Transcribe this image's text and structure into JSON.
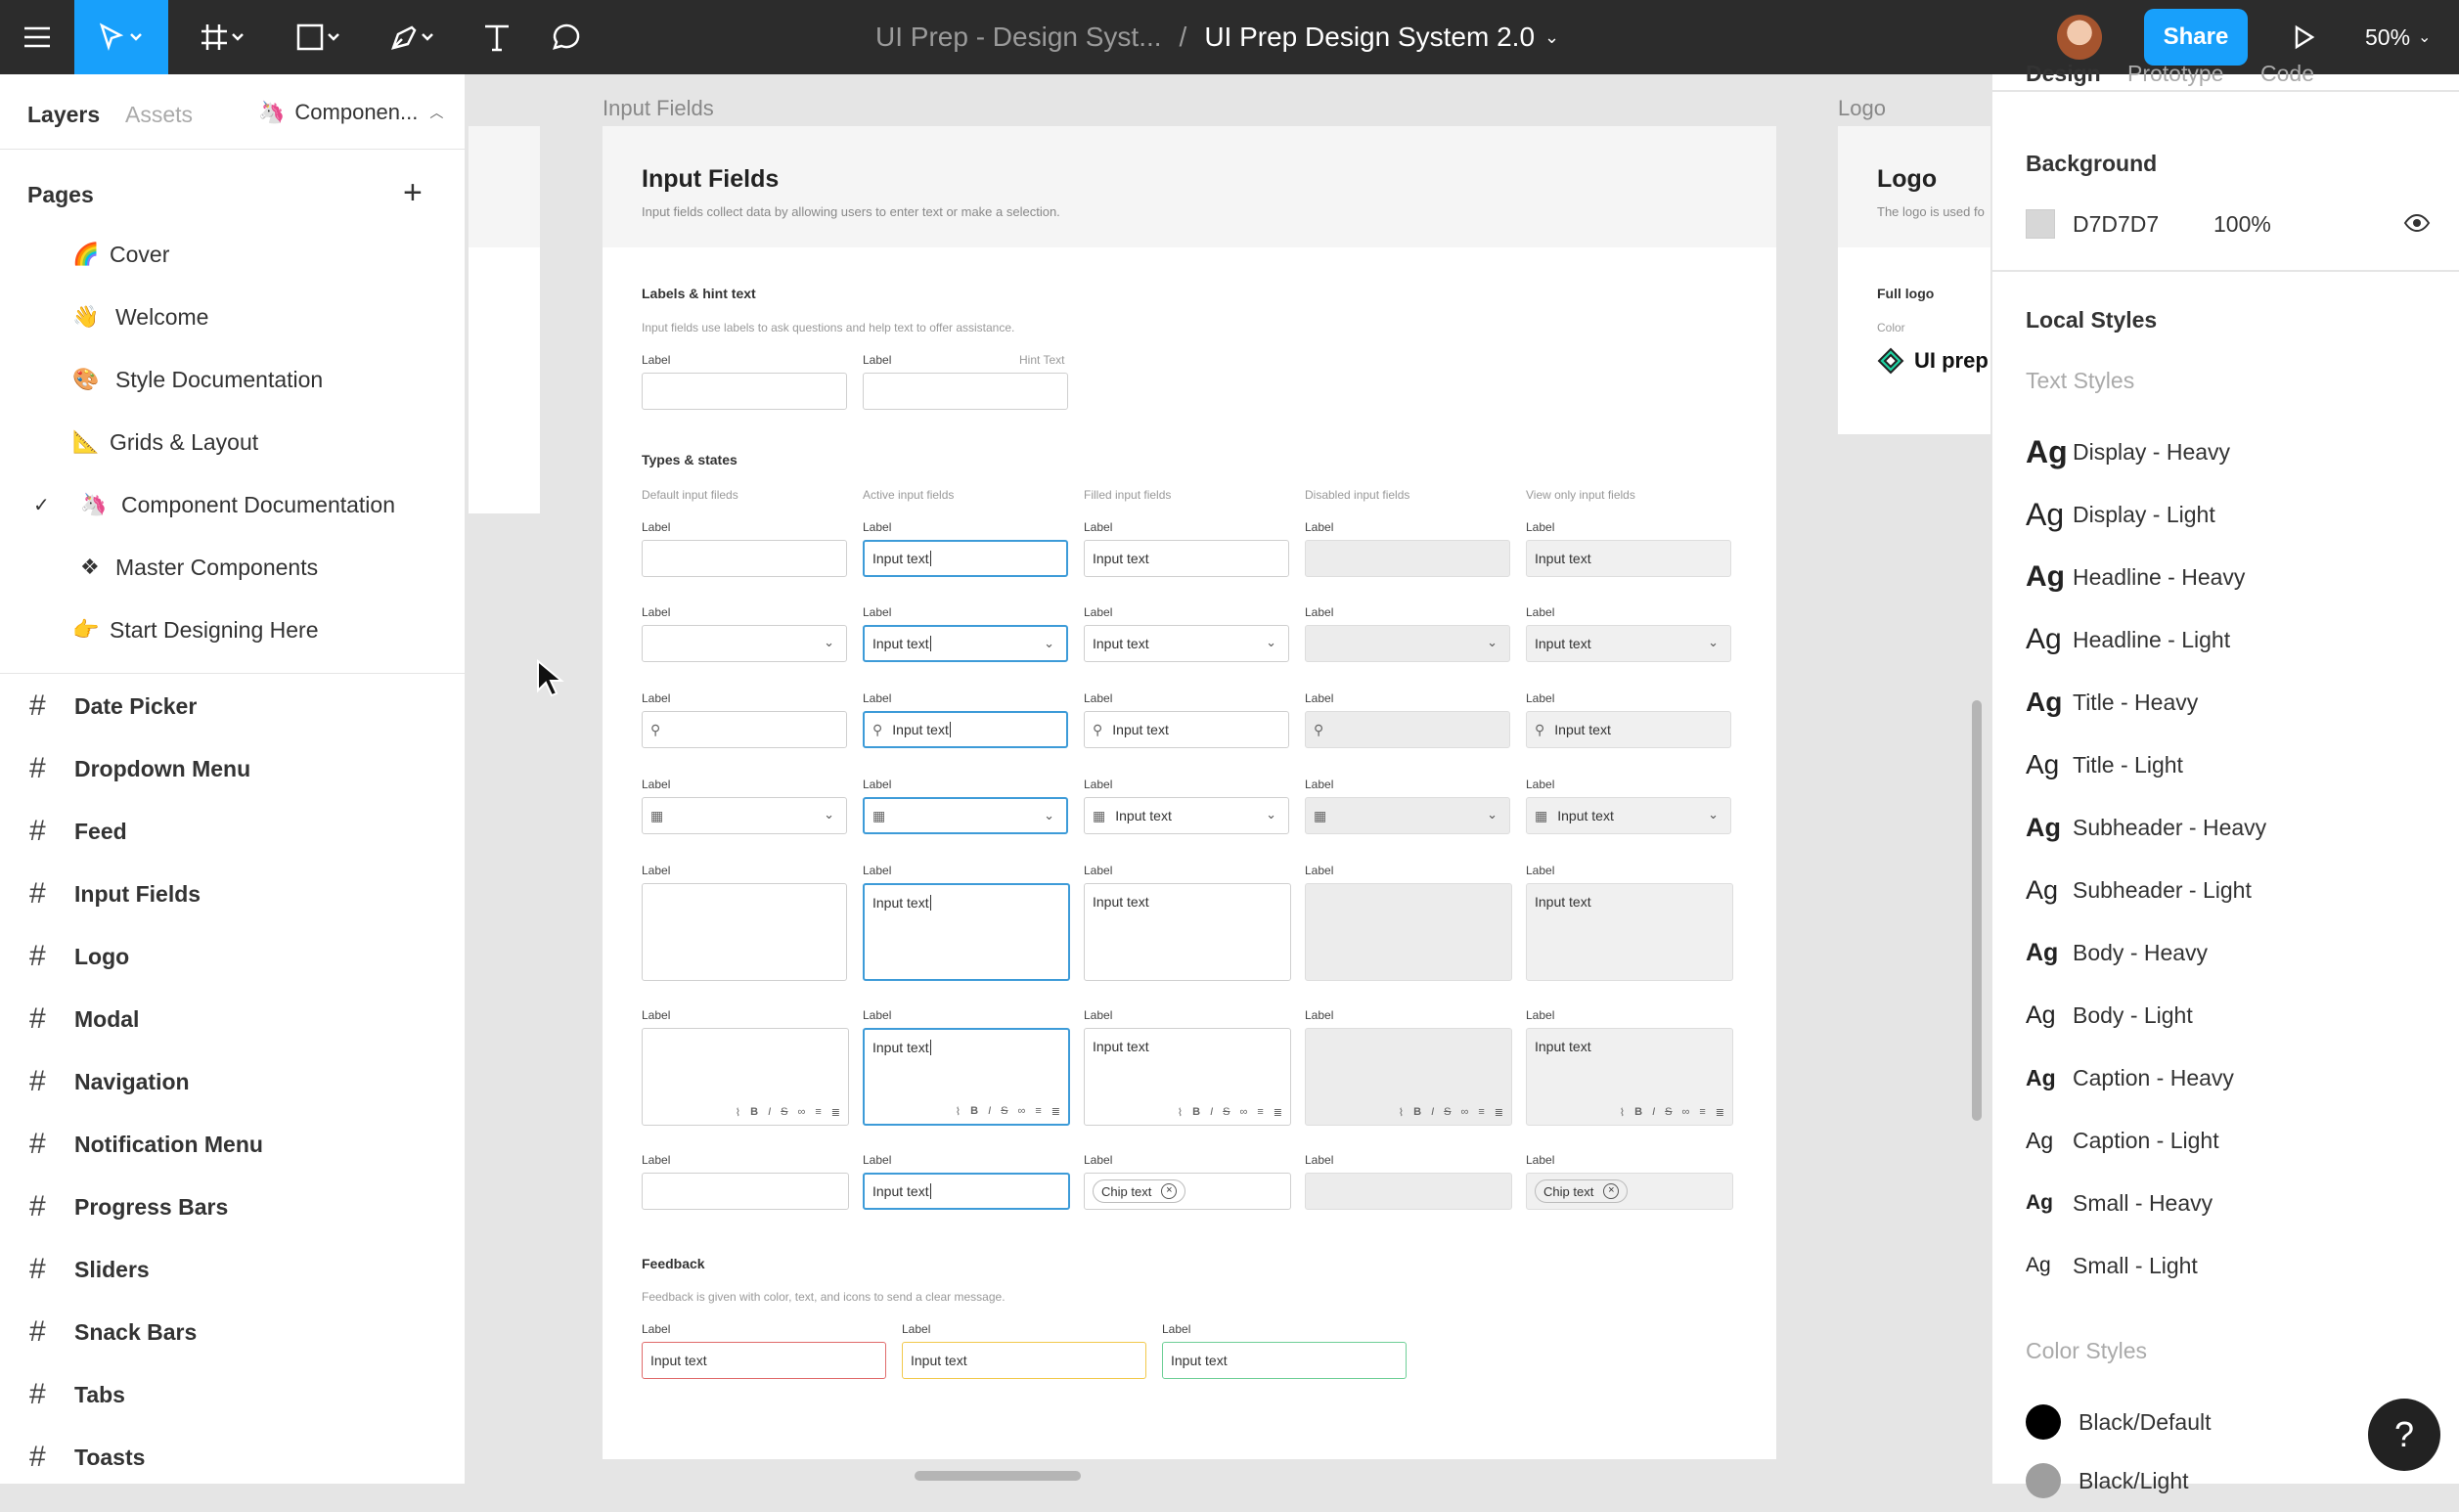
{
  "topbar": {
    "project": "UI Prep - Design Syst...",
    "separator": "/",
    "file": "UI Prep Design System 2.0",
    "share": "Share",
    "zoom": "50%"
  },
  "left_panel": {
    "tabs": [
      "Layers",
      "Assets"
    ],
    "component_selector": "Componen...",
    "pages_heading": "Pages",
    "pages": [
      {
        "emoji": "🌈",
        "label": "Cover"
      },
      {
        "emoji": "👋",
        "label": "Welcome"
      },
      {
        "emoji": "🎨",
        "label": "Style Documentation"
      },
      {
        "emoji": "📐",
        "label": "Grids & Layout"
      },
      {
        "emoji": "🦄",
        "label": "Component Documentation"
      },
      {
        "emoji": "❖",
        "label": "Master Components"
      },
      {
        "emoji": "👉",
        "label": "Start Designing Here"
      }
    ],
    "layers": [
      "Date Picker",
      "Dropdown Menu",
      "Feed",
      "Input Fields",
      "Logo",
      "Modal",
      "Navigation",
      "Notification Menu",
      "Progress Bars",
      "Sliders",
      "Snack Bars",
      "Tabs",
      "Toasts"
    ]
  },
  "canvas": {
    "frame_label": "Input Fields",
    "logo_label": "Logo",
    "frame": {
      "title": "Input Fields",
      "subtitle": "Input fields collect data by allowing users to enter text or make a selection.",
      "labels_section": {
        "title": "Labels & hint text",
        "desc": "Input fields use labels to ask questions and help text to offer assistance.",
        "label": "Label",
        "hint": "Hint Text"
      },
      "types_section": {
        "title": "Types & states",
        "columns": [
          "Default input fileds",
          "Active input fields",
          "Filled input fields",
          "Disabled input fields",
          "View only input fields"
        ]
      },
      "field_label": "Label",
      "input_text": "Input text",
      "chip_text": "Chip text",
      "feedback_section": {
        "title": "Feedback",
        "desc": "Feedback is given with color, text, and icons to send a clear message."
      }
    },
    "logo_frame": {
      "title": "Logo",
      "subtitle": "The logo is used fo",
      "full_logo": "Full logo",
      "color": "Color",
      "logo_text": "UI prep"
    }
  },
  "right_panel": {
    "tabs": [
      "Design",
      "Prototype",
      "Code"
    ],
    "background_heading": "Background",
    "bg_hex": "D7D7D7",
    "bg_opacity": "100%",
    "bg_color": "#D7D7D7",
    "local_styles": "Local Styles",
    "text_styles": "Text Styles",
    "ag": "Ag",
    "styles": [
      "Display - Heavy",
      "Display - Light",
      "Headline - Heavy",
      "Headline - Light",
      "Title - Heavy",
      "Title - Light",
      "Subheader - Heavy",
      "Subheader - Light",
      "Body - Heavy",
      "Body - Light",
      "Caption - Heavy",
      "Caption - Light",
      "Small - Heavy",
      "Small - Light"
    ],
    "color_styles": "Color Styles",
    "colors": [
      {
        "name": "Black/Default",
        "hex": "#000000"
      },
      {
        "name": "Black/Light",
        "hex": "#9E9E9E"
      }
    ]
  },
  "help": "?"
}
